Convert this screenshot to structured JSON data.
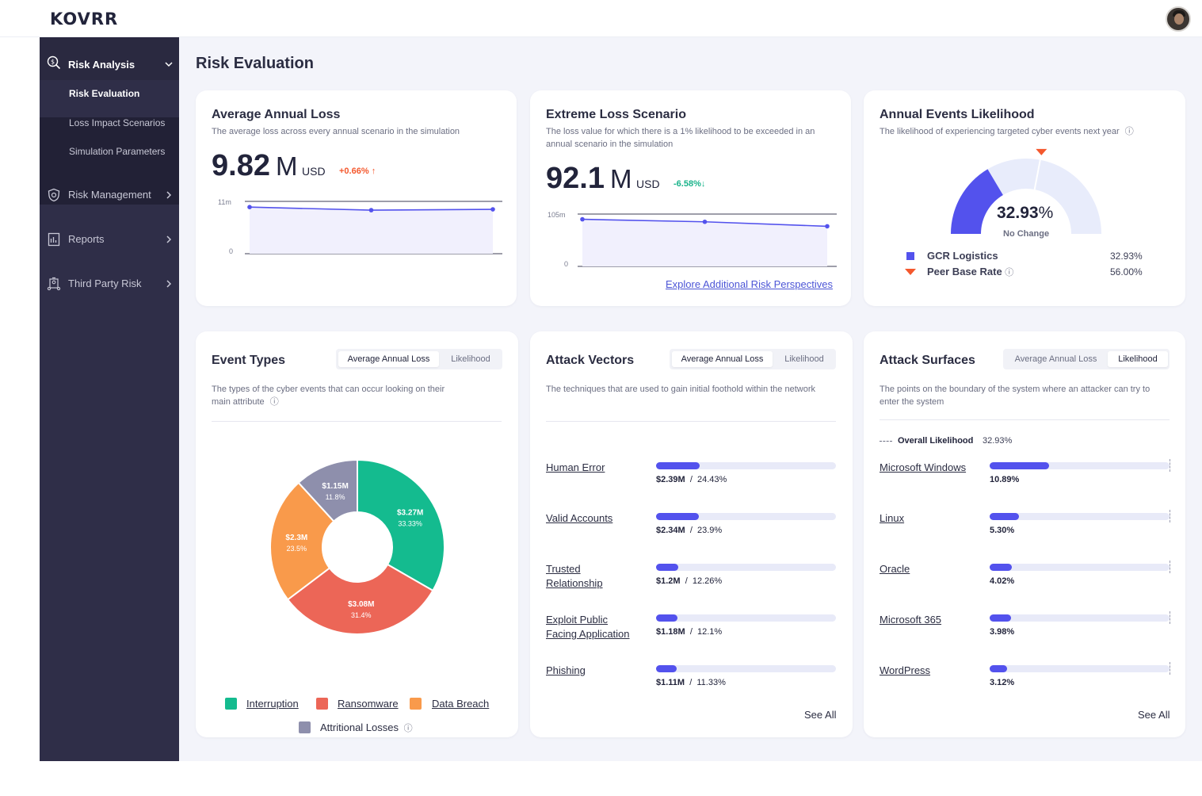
{
  "app": {
    "logo": "KOVRR"
  },
  "sidebar": {
    "sections": [
      {
        "label": "Risk Analysis",
        "icon": "dollar-search-icon",
        "expanded": true
      },
      {
        "label": "Risk Management",
        "icon": "shield-icon"
      },
      {
        "label": "Reports",
        "icon": "report-icon"
      },
      {
        "label": "Third Party Risk",
        "icon": "third-party-icon"
      }
    ],
    "sub_items": [
      {
        "label": "Risk Evaluation",
        "active": true
      },
      {
        "label": "Loss Impact Scenarios"
      },
      {
        "label": "Simulation Parameters"
      }
    ]
  },
  "page": {
    "title": "Risk Evaluation"
  },
  "aal": {
    "title": "Average Annual Loss",
    "description": "The average loss across every annual scenario in the simulation",
    "value": "9.82",
    "unit": "M",
    "currency": "USD",
    "delta": "+0.66%",
    "y_max_label": "11m",
    "y_min_label": "0"
  },
  "els": {
    "title": "Extreme Loss Scenario",
    "description_line1": "The loss value for which there is a 1% likelihood to be exceeded in an",
    "description_line2": "annual scenario in the simulation",
    "value": "92.1",
    "unit": "M",
    "currency": "USD",
    "delta": "-6.58%",
    "y_max_label": "105m",
    "y_min_label": "0",
    "link": "Explore Additional Risk Perspectives"
  },
  "likelihood": {
    "title": "Annual Events Likelihood",
    "description": "The likelihood of experiencing targeted cyber events next year",
    "value": "32.93",
    "unit": "%",
    "status": "No Change",
    "legend": [
      {
        "label": "GCR Logistics",
        "value": "32.93%",
        "color": "#5352ed"
      },
      {
        "label": "Peer Base Rate",
        "value": "56.00%",
        "color": "#f4582d"
      }
    ]
  },
  "event_types": {
    "title": "Event Types",
    "toggle": [
      "Average Annual Loss",
      "Likelihood"
    ],
    "description_line1": "The types of the cyber events that can occur looking on  their",
    "description_line2": "main attribute",
    "legend": [
      "Interruption",
      "Ransomware",
      "Data Breach",
      "Attritional Losses"
    ]
  },
  "attack_vectors": {
    "title": "Attack Vectors",
    "toggle": [
      "Average Annual Loss",
      "Likelihood"
    ],
    "description": "The techniques that are used to gain initial foothold within the network",
    "rows": [
      {
        "label_1": "Human Error",
        "label_2": "",
        "amount": "$2.39M",
        "pct": "24.43%",
        "fill": 0.2443
      },
      {
        "label_1": "Valid Accounts",
        "label_2": "",
        "amount": "$2.34M",
        "pct": "23.9%",
        "fill": 0.239
      },
      {
        "label_1": "Trusted",
        "label_2": "Relationship",
        "amount": "$1.2M",
        "pct": "12.26%",
        "fill": 0.1226
      },
      {
        "label_1": "Exploit Public",
        "label_2": "Facing Application",
        "amount": "$1.18M",
        "pct": "12.1%",
        "fill": 0.121
      },
      {
        "label_1": "Phishing",
        "label_2": "",
        "amount": "$1.11M",
        "pct": "11.33%",
        "fill": 0.1133
      }
    ],
    "see_all": "See All"
  },
  "attack_surfaces": {
    "title": "Attack Surfaces",
    "toggle": [
      "Average Annual Loss",
      "Likelihood"
    ],
    "description_line1": "The points on the boundary of the system where an attacker can try to",
    "description_line2": "enter  the system",
    "overall_label": "Overall Likelihood",
    "overall_value": "32.93%",
    "rows": [
      {
        "label": "Microsoft Windows",
        "pct": "10.89%",
        "fill": 0.3307
      },
      {
        "label": "Linux",
        "pct": "5.30%",
        "fill": 0.161
      },
      {
        "label": "Oracle",
        "pct": "4.02%",
        "fill": 0.122
      },
      {
        "label": "Microsoft 365",
        "pct": "3.98%",
        "fill": 0.121
      },
      {
        "label": "WordPress",
        "pct": "3.12%",
        "fill": 0.095
      }
    ],
    "see_all": "See All"
  },
  "chart_data": [
    {
      "type": "line",
      "title": "Average Annual Loss",
      "x": [
        1,
        2,
        3
      ],
      "series": [
        {
          "values": [
            9.8,
            9.15,
            9.33
          ]
        }
      ],
      "ylim": [
        0,
        11
      ],
      "y_tick_labels": [
        "0",
        "11m"
      ],
      "colors": {
        "line": "#5352ed",
        "fill": "#f1f0fd"
      }
    },
    {
      "type": "line",
      "title": "Extreme Loss Scenario",
      "x": [
        1,
        2,
        3
      ],
      "series": [
        {
          "values": [
            94.5,
            89.5,
            80.5
          ]
        }
      ],
      "ylim": [
        0,
        105
      ],
      "y_tick_labels": [
        "0",
        "105m"
      ],
      "colors": {
        "line": "#5352ed",
        "fill": "#f1f0fd"
      }
    },
    {
      "type": "pie",
      "title": "Event Types",
      "categories": [
        "Interruption",
        "Ransomware",
        "Data Breach",
        "Attritional Losses"
      ],
      "values": [
        33.33,
        31.4,
        23.5,
        11.8
      ],
      "labels": [
        "$3.27M",
        "$3.08M",
        "$2.3M",
        "$1.15M"
      ],
      "pct_labels": [
        "33.33%",
        "31.4%",
        "23.5%",
        "11.8%"
      ],
      "colors": [
        "#14bb8f",
        "#ec6657",
        "#f99a4b",
        "#8e8fac"
      ]
    }
  ]
}
